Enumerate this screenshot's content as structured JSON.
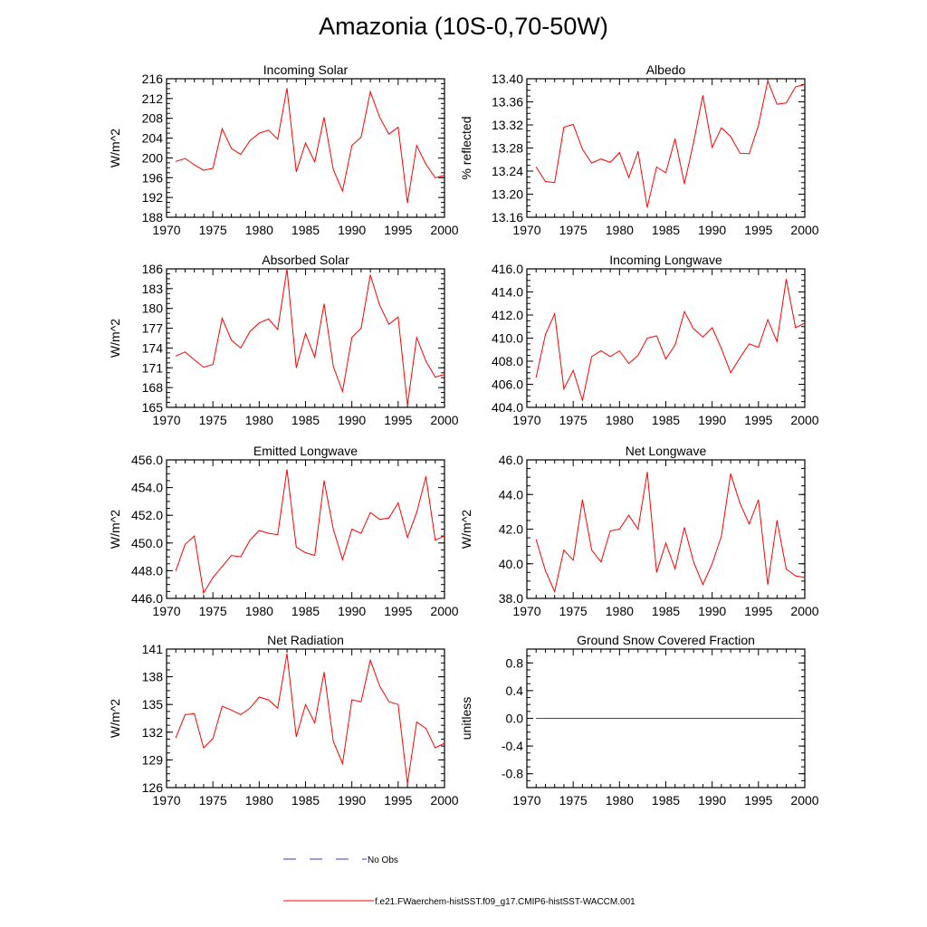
{
  "title": "Amazonia (10S-0,70-50W)",
  "legend": [
    {
      "label": "No Obs",
      "color": "#3b3bb0",
      "style": "dashed"
    },
    {
      "label": "f.e21.FWaerchem-histSST.f09_g17.CMIP6-histSST-WACCM.001",
      "color": "#ff0000",
      "style": "solid"
    }
  ],
  "chart_data": [
    {
      "type": "line",
      "title": "Incoming Solar",
      "ylabel": "W/m^2",
      "xlim": [
        1970,
        2000
      ],
      "ylim": [
        188,
        216
      ],
      "xticks": [
        1970,
        1975,
        1980,
        1985,
        1990,
        1995,
        2000
      ],
      "yticks": [
        "188",
        "192",
        "196",
        "200",
        "204",
        "208",
        "212",
        "216"
      ],
      "ytick_values": [
        188,
        192,
        196,
        200,
        204,
        208,
        212,
        216
      ],
      "ytick_side": "left",
      "series": [
        {
          "color": "#ff0000",
          "x": [
            1971,
            1972,
            1973,
            1974,
            1975,
            1976,
            1977,
            1978,
            1979,
            1980,
            1981,
            1982,
            1983,
            1984,
            1985,
            1986,
            1987,
            1988,
            1989,
            1990,
            1991,
            1992,
            1993,
            1994,
            1995,
            1996,
            1997,
            1998,
            1999,
            2000
          ],
          "y": [
            199.3,
            199.9,
            198.6,
            197.5,
            197.9,
            205.9,
            201.9,
            200.7,
            203.5,
            205.0,
            205.6,
            203.8,
            214.1,
            197.2,
            203.0,
            199.2,
            208.2,
            197.6,
            193.3,
            202.5,
            204.2,
            213.4,
            208.2,
            204.8,
            206.2,
            190.9,
            202.5,
            198.7,
            196.0,
            196.5
          ]
        }
      ]
    },
    {
      "type": "line",
      "title": "Albedo",
      "ylabel": "% reflected",
      "xlim": [
        1970,
        2000
      ],
      "ylim": [
        13.16,
        13.4
      ],
      "xticks": [
        1970,
        1975,
        1980,
        1985,
        1990,
        1995,
        2000
      ],
      "yticks": [
        "13.16",
        "13.20",
        "13.24",
        "13.28",
        "13.32",
        "13.36",
        "13.40"
      ],
      "ytick_values": [
        13.16,
        13.2,
        13.24,
        13.28,
        13.32,
        13.36,
        13.4
      ],
      "ytick_side": "left",
      "series": [
        {
          "color": "#ff0000",
          "x": [
            1971,
            1972,
            1973,
            1974,
            1975,
            1976,
            1977,
            1978,
            1979,
            1980,
            1981,
            1982,
            1983,
            1984,
            1985,
            1986,
            1987,
            1988,
            1989,
            1990,
            1991,
            1992,
            1993,
            1994,
            1995,
            1996,
            1997,
            1998,
            1999,
            2000
          ],
          "y": [
            13.247,
            13.222,
            13.22,
            13.316,
            13.321,
            13.278,
            13.254,
            13.261,
            13.255,
            13.272,
            13.229,
            13.274,
            13.177,
            13.247,
            13.237,
            13.296,
            13.218,
            13.29,
            13.371,
            13.281,
            13.315,
            13.3,
            13.271,
            13.27,
            13.319,
            13.396,
            13.356,
            13.358,
            13.386,
            13.39
          ]
        }
      ]
    },
    {
      "type": "line",
      "title": "Absorbed Solar",
      "ylabel": "W/m^2",
      "xlim": [
        1970,
        2000
      ],
      "ylim": [
        165,
        186
      ],
      "xticks": [
        1970,
        1975,
        1980,
        1985,
        1990,
        1995,
        2000
      ],
      "yticks": [
        "165",
        "168",
        "171",
        "174",
        "177",
        "180",
        "183",
        "186"
      ],
      "ytick_values": [
        165,
        168,
        171,
        174,
        177,
        180,
        183,
        186
      ],
      "ytick_side": "left",
      "series": [
        {
          "color": "#ff0000",
          "x": [
            1971,
            1972,
            1973,
            1974,
            1975,
            1976,
            1977,
            1978,
            1979,
            1980,
            1981,
            1982,
            1983,
            1984,
            1985,
            1986,
            1987,
            1988,
            1989,
            1990,
            1991,
            1992,
            1993,
            1994,
            1995,
            1996,
            1997,
            1998,
            1999,
            2000
          ],
          "y": [
            172.8,
            173.4,
            172.2,
            171.1,
            171.5,
            178.5,
            175.2,
            174.0,
            176.5,
            177.8,
            178.4,
            176.8,
            186.0,
            171.0,
            176.2,
            172.6,
            180.7,
            171.2,
            167.4,
            175.6,
            177.0,
            185.1,
            180.5,
            177.6,
            178.7,
            165.3,
            175.6,
            172.0,
            169.6,
            170.0
          ]
        }
      ]
    },
    {
      "type": "line",
      "title": "Incoming Longwave",
      "ylabel": "",
      "xlim": [
        1970,
        2000
      ],
      "ylim": [
        404.0,
        416.0
      ],
      "xticks": [
        1970,
        1975,
        1980,
        1985,
        1990,
        1995,
        2000
      ],
      "yticks": [
        "404.0",
        "406.0",
        "408.0",
        "410.0",
        "412.0",
        "414.0",
        "416.0"
      ],
      "ytick_values": [
        404,
        406,
        408,
        410,
        412,
        414,
        416
      ],
      "ytick_side": "left",
      "series": [
        {
          "color": "#ff0000",
          "x": [
            1971,
            1972,
            1973,
            1974,
            1975,
            1976,
            1977,
            1978,
            1979,
            1980,
            1981,
            1982,
            1983,
            1984,
            1985,
            1986,
            1987,
            1988,
            1989,
            1990,
            1991,
            1992,
            1993,
            1994,
            1995,
            1996,
            1997,
            1998,
            1999,
            2000
          ],
          "y": [
            406.6,
            410.3,
            412.1,
            405.6,
            407.2,
            404.6,
            408.4,
            408.9,
            408.4,
            408.9,
            407.8,
            408.5,
            410.0,
            410.2,
            408.2,
            409.4,
            412.3,
            410.8,
            410.1,
            410.9,
            409.1,
            407.0,
            408.3,
            409.5,
            409.2,
            411.6,
            409.7,
            415.1,
            410.9,
            411.3
          ]
        }
      ]
    },
    {
      "type": "line",
      "title": "Emitted Longwave",
      "ylabel": "W/m^2",
      "xlim": [
        1970,
        2000
      ],
      "ylim": [
        446.0,
        456.0
      ],
      "xticks": [
        1970,
        1975,
        1980,
        1985,
        1990,
        1995,
        2000
      ],
      "yticks": [
        "446.0",
        "448.0",
        "450.0",
        "452.0",
        "454.0",
        "456.0"
      ],
      "ytick_values": [
        446,
        448,
        450,
        452,
        454,
        456
      ],
      "ytick_side": "left",
      "series": [
        {
          "color": "#ff0000",
          "x": [
            1971,
            1972,
            1973,
            1974,
            1975,
            1976,
            1977,
            1978,
            1979,
            1980,
            1981,
            1982,
            1983,
            1984,
            1985,
            1986,
            1987,
            1988,
            1989,
            1990,
            1991,
            1992,
            1993,
            1994,
            1995,
            1996,
            1997,
            1998,
            1999,
            2000
          ],
          "y": [
            448.0,
            449.9,
            450.5,
            446.4,
            447.5,
            448.3,
            449.1,
            449.0,
            450.2,
            450.9,
            450.7,
            450.6,
            455.3,
            449.7,
            449.3,
            449.1,
            454.5,
            451.0,
            448.8,
            451.0,
            450.7,
            452.2,
            451.7,
            451.8,
            452.9,
            450.4,
            452.2,
            454.8,
            450.2,
            450.5
          ]
        }
      ]
    },
    {
      "type": "line",
      "title": "Net Longwave",
      "ylabel": "W/m^2",
      "xlim": [
        1970,
        2000
      ],
      "ylim": [
        38.0,
        46.0
      ],
      "xticks": [
        1970,
        1975,
        1980,
        1985,
        1990,
        1995,
        2000
      ],
      "yticks": [
        "38.0",
        "40.0",
        "42.0",
        "44.0",
        "46.0"
      ],
      "ytick_values": [
        38,
        40,
        42,
        44,
        46
      ],
      "ytick_side": "left",
      "series": [
        {
          "color": "#ff0000",
          "x": [
            1971,
            1972,
            1973,
            1974,
            1975,
            1976,
            1977,
            1978,
            1979,
            1980,
            1981,
            1982,
            1983,
            1984,
            1985,
            1986,
            1987,
            1988,
            1989,
            1990,
            1991,
            1992,
            1993,
            1994,
            1995,
            1996,
            1997,
            1998,
            1999,
            2000
          ],
          "y": [
            41.4,
            39.6,
            38.4,
            40.8,
            40.2,
            43.7,
            40.8,
            40.1,
            41.9,
            42.0,
            42.8,
            42.0,
            45.3,
            39.5,
            41.2,
            39.7,
            42.1,
            40.1,
            38.8,
            40.0,
            41.6,
            45.2,
            43.5,
            42.3,
            43.7,
            38.8,
            42.5,
            39.7,
            39.3,
            39.2
          ]
        }
      ]
    },
    {
      "type": "line",
      "title": "Net Radiation",
      "ylabel": "W/m^2",
      "xlim": [
        1970,
        2000
      ],
      "ylim": [
        126,
        141
      ],
      "xticks": [
        1970,
        1975,
        1980,
        1985,
        1990,
        1995,
        2000
      ],
      "yticks": [
        "126",
        "129",
        "132",
        "135",
        "138",
        "141"
      ],
      "ytick_values": [
        126,
        129,
        132,
        135,
        138,
        141
      ],
      "ytick_side": "left",
      "series": [
        {
          "color": "#ff0000",
          "x": [
            1971,
            1972,
            1973,
            1974,
            1975,
            1976,
            1977,
            1978,
            1979,
            1980,
            1981,
            1982,
            1983,
            1984,
            1985,
            1986,
            1987,
            1988,
            1989,
            1990,
            1991,
            1992,
            1993,
            1994,
            1995,
            1996,
            1997,
            1998,
            1999,
            2000
          ],
          "y": [
            131.4,
            133.9,
            134.0,
            130.3,
            131.3,
            134.8,
            134.4,
            133.9,
            134.6,
            135.8,
            135.5,
            134.6,
            140.5,
            131.5,
            135.0,
            133.0,
            138.5,
            131.0,
            128.6,
            135.5,
            135.3,
            139.8,
            137.0,
            135.3,
            135.0,
            126.4,
            133.1,
            132.4,
            130.3,
            130.8
          ]
        }
      ]
    },
    {
      "type": "line",
      "title": "Ground Snow Covered Fraction",
      "ylabel": "unitless",
      "xlim": [
        1970,
        2000
      ],
      "ylim": [
        -1.0,
        1.0
      ],
      "xticks": [
        1970,
        1975,
        1980,
        1985,
        1990,
        1995,
        2000
      ],
      "yticks": [
        "-0.8",
        "-0.4",
        "0.0",
        "0.4",
        "0.8"
      ],
      "ytick_values": [
        -0.8,
        -0.4,
        0.0,
        0.4,
        0.8
      ],
      "ytick_side": "left",
      "series": [
        {
          "color": "#ff0000",
          "x": [
            1971,
            1972,
            1973,
            1974,
            1975,
            1976,
            1977,
            1978,
            1979,
            1980,
            1981,
            1982,
            1983,
            1984,
            1985,
            1986,
            1987,
            1988,
            1989,
            1990,
            1991,
            1992,
            1993,
            1994,
            1995,
            1996,
            1997,
            1998,
            1999,
            2000
          ],
          "y": [
            0,
            0,
            0,
            0,
            0,
            0,
            0,
            0,
            0,
            0,
            0,
            0,
            0,
            0,
            0,
            0,
            0,
            0,
            0,
            0,
            0,
            0,
            0,
            0,
            0,
            0,
            0,
            0,
            0,
            0
          ]
        }
      ]
    }
  ]
}
